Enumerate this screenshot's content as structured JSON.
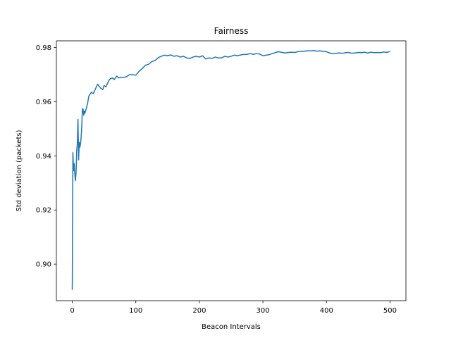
{
  "chart_data": {
    "type": "line",
    "title": "Fairness",
    "xlabel": "Beacon Intervals",
    "ylabel": "Std deviation (packets)",
    "xlim": [
      -25,
      525
    ],
    "ylim": [
      0.8865,
      0.9825
    ],
    "xticks": [
      0,
      100,
      200,
      300,
      400,
      500
    ],
    "xtick_labels": [
      "0",
      "100",
      "200",
      "300",
      "400",
      "500"
    ],
    "yticks": [
      0.9,
      0.92,
      0.94,
      0.96,
      0.98
    ],
    "ytick_labels": [
      "0.90",
      "0.92",
      "0.94",
      "0.96",
      "0.98"
    ],
    "grid": false,
    "series": [
      {
        "color": "#1f77b4",
        "x": [
          0,
          1,
          2,
          3,
          4,
          5,
          6,
          7,
          8,
          9,
          10,
          11,
          12,
          13,
          14,
          15,
          16,
          17,
          18,
          19,
          20,
          22,
          24,
          26,
          28,
          30,
          33,
          36,
          40,
          43,
          45,
          48,
          50,
          53,
          55,
          58,
          60,
          63,
          66,
          70,
          73,
          76,
          80,
          85,
          90,
          95,
          100,
          105,
          110,
          115,
          120,
          125,
          130,
          135,
          140,
          145,
          150,
          155,
          160,
          165,
          170,
          175,
          180,
          185,
          190,
          195,
          200,
          205,
          210,
          215,
          220,
          225,
          230,
          235,
          240,
          245,
          250,
          255,
          260,
          265,
          270,
          275,
          280,
          285,
          290,
          295,
          300,
          305,
          310,
          315,
          320,
          325,
          330,
          335,
          340,
          345,
          350,
          355,
          360,
          365,
          370,
          375,
          380,
          385,
          390,
          395,
          400,
          405,
          410,
          415,
          420,
          425,
          430,
          435,
          440,
          445,
          450,
          455,
          460,
          465,
          470,
          475,
          480,
          485,
          490,
          495,
          500
        ],
        "y": [
          0.8905,
          0.9412,
          0.9345,
          0.9372,
          0.9332,
          0.9308,
          0.934,
          0.942,
          0.9445,
          0.9535,
          0.9385,
          0.945,
          0.9432,
          0.9445,
          0.947,
          0.951,
          0.9575,
          0.9572,
          0.955,
          0.9565,
          0.9558,
          0.9575,
          0.9592,
          0.962,
          0.9628,
          0.9635,
          0.963,
          0.9645,
          0.9665,
          0.9655,
          0.965,
          0.9645,
          0.966,
          0.9655,
          0.9665,
          0.968,
          0.9685,
          0.9688,
          0.9682,
          0.9695,
          0.9688,
          0.969,
          0.969,
          0.9692,
          0.97,
          0.97,
          0.9698,
          0.9712,
          0.9722,
          0.9735,
          0.9738,
          0.9748,
          0.9752,
          0.9762,
          0.9768,
          0.9772,
          0.977,
          0.9773,
          0.9768,
          0.977,
          0.9765,
          0.9768,
          0.9762,
          0.976,
          0.9765,
          0.9768,
          0.9765,
          0.977,
          0.9758,
          0.9762,
          0.976,
          0.9765,
          0.9762,
          0.9762,
          0.9768,
          0.9765,
          0.9768,
          0.9772,
          0.977,
          0.9773,
          0.9775,
          0.9775,
          0.9778,
          0.9775,
          0.9778,
          0.9776,
          0.977,
          0.9772,
          0.9774,
          0.9778,
          0.9782,
          0.9785,
          0.9782,
          0.978,
          0.9782,
          0.9783,
          0.9782,
          0.9785,
          0.9786,
          0.9787,
          0.9788,
          0.9788,
          0.9789,
          0.9787,
          0.9788,
          0.9786,
          0.9785,
          0.978,
          0.9778,
          0.9779,
          0.978,
          0.9779,
          0.9781,
          0.9782,
          0.9779,
          0.978,
          0.9782,
          0.9781,
          0.9783,
          0.978,
          0.9783,
          0.9781,
          0.9782,
          0.9781,
          0.9784,
          0.9782,
          0.9786
        ]
      }
    ]
  }
}
